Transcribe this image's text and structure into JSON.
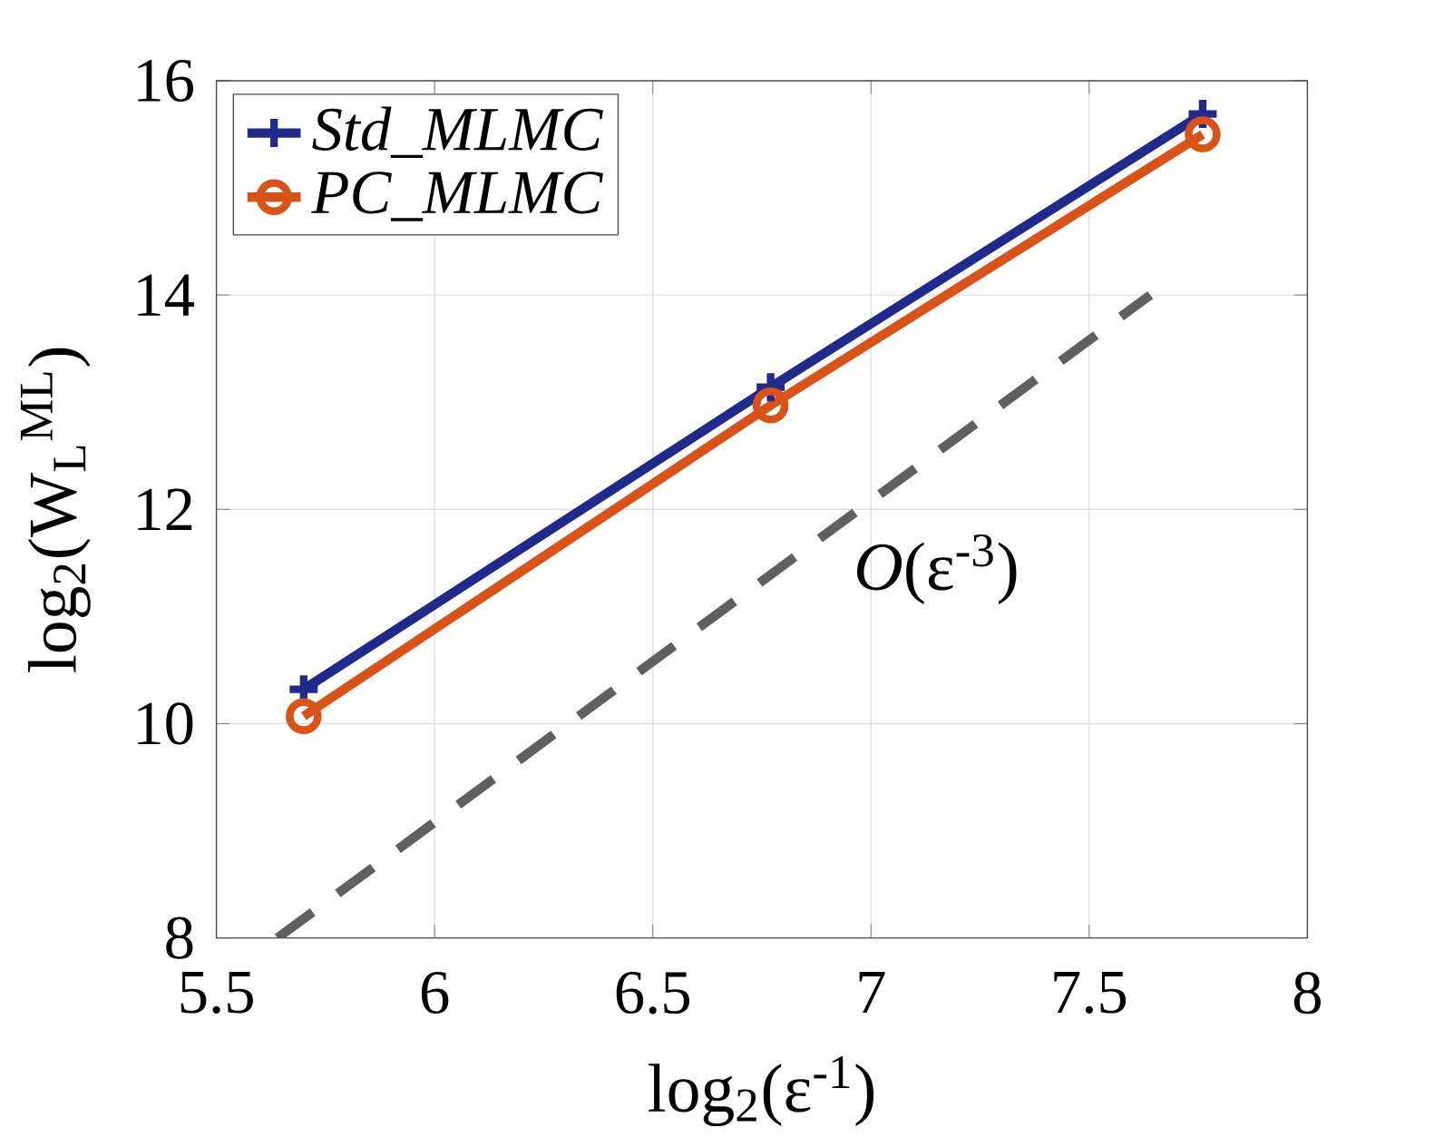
{
  "chart_data": {
    "type": "line",
    "xlabel": "log$_{2}$(ε$^{-1}$)",
    "ylabel": "log$_{2}$(W$_{L}$$^{ML}$)",
    "x": [
      5.7,
      6.77,
      7.76
    ],
    "series": [
      {
        "name": "Std_MLMC",
        "color": "#1f2a8c",
        "marker": "cross",
        "values": [
          10.32,
          13.14,
          15.69
        ]
      },
      {
        "name": "PC_MLMC",
        "color": "#d95319",
        "marker": "circle",
        "values": [
          10.07,
          12.97,
          15.5
        ]
      },
      {
        "type": "line",
        "color": "#606060",
        "line_style": "dashed",
        "marker": "none",
        "x": [
          5.64,
          7.64
        ],
        "values": [
          8,
          14
        ]
      }
    ],
    "annotations": [
      "*O*(ε$^{-3}$)"
    ],
    "xlim": [
      5.5,
      8
    ],
    "ylim": [
      8,
      16
    ],
    "xticks": [
      5.5,
      6,
      6.5,
      7,
      7.5,
      8
    ],
    "yticks": [
      8,
      10,
      12,
      14,
      16
    ],
    "grid": true,
    "legend": "top left",
    "line_style": "solid"
  }
}
